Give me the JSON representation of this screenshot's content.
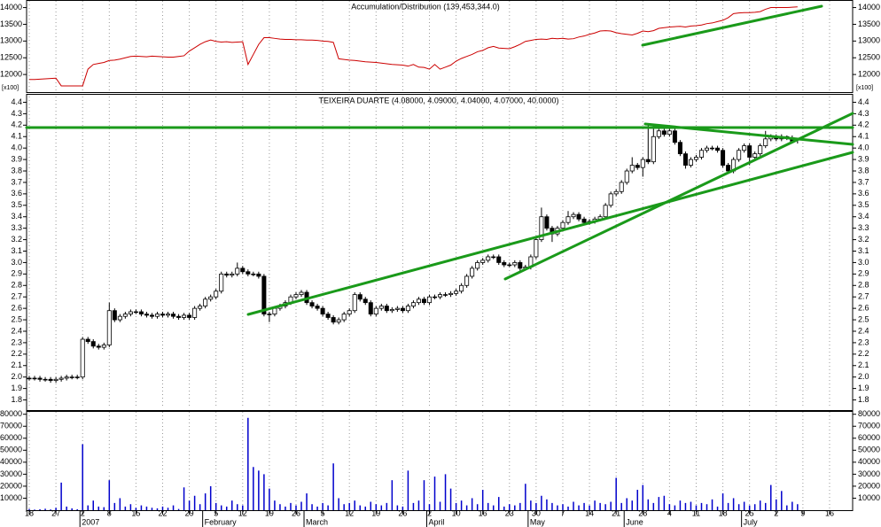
{
  "chart_data": [
    {
      "type": "line",
      "title": "Accumulation/Distribution (139,453,344.0)",
      "color": "#cc0000",
      "scale_note": "[x100]",
      "ylim": [
        11500,
        14200
      ],
      "yticks": [
        12000,
        12500,
        13000,
        13500,
        14000
      ],
      "values": [
        11850,
        11850,
        11860,
        11870,
        11880,
        11890,
        11660,
        11660,
        11660,
        11660,
        11660,
        12160,
        12300,
        12330,
        12360,
        12420,
        12430,
        12460,
        12500,
        12540,
        12550,
        12540,
        12530,
        12550,
        12540,
        12530,
        12520,
        12520,
        12540,
        12560,
        12700,
        12800,
        12900,
        12980,
        13030,
        12990,
        12970,
        12980,
        12960,
        12970,
        12980,
        12300,
        12600,
        12900,
        13100,
        13100,
        13080,
        13060,
        13050,
        13050,
        13040,
        13040,
        13030,
        13030,
        13020,
        13000,
        12990,
        12960,
        12470,
        12450,
        12430,
        12420,
        12400,
        12380,
        12370,
        12360,
        12340,
        12320,
        12300,
        12290,
        12280,
        12250,
        12300,
        12220,
        12210,
        12160,
        12300,
        12160,
        12220,
        12280,
        12400,
        12480,
        12540,
        12600,
        12680,
        12720,
        12800,
        12840,
        12790,
        12780,
        12770,
        12830,
        12900,
        12990,
        13020,
        13050,
        13060,
        13050,
        13080,
        13070,
        13080,
        13060,
        13070,
        13120,
        13150,
        13200,
        13240,
        13300,
        13310,
        13300,
        13250,
        13220,
        13200,
        13180,
        13230,
        13300,
        13280,
        13310,
        13380,
        13400,
        13420,
        13430,
        13440,
        13420,
        13450,
        13460,
        13480,
        13520,
        13540,
        13580,
        13620,
        13700,
        13820,
        13840,
        13850,
        13850,
        13860,
        13880,
        13950,
        14000,
        14000,
        14000,
        14000,
        14010,
        14020,
        null,
        null,
        null,
        null,
        null,
        null,
        null
      ]
    },
    {
      "type": "candlestick",
      "title": "TEIXEIRA DUARTE (4.08000, 4.09000, 4.04000, 4.07000, 40.0000)",
      "ylim": [
        1.75,
        4.45
      ],
      "yticks": [
        1.8,
        1.9,
        {
          "value": 2,
          "label": "2.0"
        },
        2.1,
        2.2,
        2.3,
        2.4,
        2.5,
        2.6,
        2.7,
        2.8,
        2.9,
        {
          "value": 3,
          "label": "3.0"
        },
        3.1,
        3.2,
        3.3,
        3.4,
        3.5,
        3.6,
        3.7,
        3.8,
        3.9,
        {
          "value": 4,
          "label": "4.0"
        },
        4.1,
        4.2,
        4.3,
        4.4
      ],
      "categories": [
        "18",
        null,
        null,
        null,
        null,
        "27",
        null,
        null,
        null,
        null,
        "2",
        null,
        null,
        null,
        null,
        "8",
        null,
        null,
        null,
        null,
        "15",
        null,
        null,
        null,
        null,
        "22",
        null,
        null,
        null,
        null,
        "29",
        null,
        null,
        null,
        null,
        "5",
        null,
        null,
        null,
        null,
        "12",
        null,
        null,
        null,
        null,
        "19",
        null,
        null,
        null,
        null,
        "26",
        null,
        null,
        null,
        null,
        "5",
        null,
        null,
        null,
        null,
        "12",
        null,
        null,
        null,
        null,
        "19",
        null,
        null,
        null,
        null,
        "26",
        null,
        null,
        null,
        null,
        "2",
        null,
        null,
        null,
        null,
        "10",
        null,
        null,
        null,
        null,
        "16",
        null,
        null,
        null,
        null,
        "23",
        null,
        null,
        null,
        null,
        "30",
        null,
        null,
        null,
        null,
        "7",
        null,
        null,
        null,
        null,
        "14",
        null,
        null,
        null,
        null,
        "21",
        null,
        null,
        null,
        null,
        "28",
        null,
        null,
        null,
        null,
        "4",
        null,
        null,
        null,
        null,
        "11",
        null,
        null,
        null,
        null,
        "18",
        null,
        null,
        null,
        null,
        "25",
        null,
        null,
        null,
        null,
        "2",
        null,
        null,
        null,
        null,
        "9",
        null,
        null,
        null,
        null,
        "16",
        null
      ],
      "months": [
        null,
        null,
        null,
        null,
        null,
        null,
        null,
        null,
        null,
        null,
        "2007",
        null,
        null,
        null,
        null,
        null,
        null,
        null,
        null,
        null,
        null,
        null,
        null,
        null,
        null,
        null,
        null,
        null,
        null,
        null,
        null,
        null,
        null,
        "February",
        null,
        null,
        null,
        null,
        null,
        null,
        null,
        null,
        null,
        null,
        null,
        null,
        null,
        null,
        null,
        null,
        null,
        null,
        "March",
        null,
        null,
        null,
        null,
        null,
        null,
        null,
        null,
        null,
        null,
        null,
        null,
        null,
        null,
        null,
        null,
        null,
        null,
        null,
        null,
        null,
        null,
        "April",
        null,
        null,
        null,
        null,
        null,
        null,
        null,
        null,
        null,
        null,
        null,
        null,
        null,
        null,
        null,
        null,
        null,
        null,
        "May",
        null,
        null,
        null,
        null,
        null,
        null,
        null,
        null,
        null,
        null,
        null,
        null,
        null,
        null,
        null,
        null,
        null,
        "June",
        null,
        null,
        null,
        null,
        null,
        null,
        null,
        null,
        null,
        null,
        null,
        null,
        null,
        null,
        null,
        null,
        null,
        null,
        null,
        null,
        null,
        "July",
        null,
        null,
        null,
        null,
        null,
        null,
        null,
        null,
        null,
        null,
        null,
        null
      ],
      "open": [
        1.99,
        1.99,
        1.99,
        1.98,
        1.98,
        1.97,
        1.98,
        1.99,
        2.0,
        2.0,
        2.0,
        2.33,
        2.31,
        2.27,
        2.26,
        2.28,
        2.58,
        2.5,
        2.53,
        2.55,
        2.57,
        2.57,
        2.55,
        2.54,
        2.53,
        2.55,
        2.54,
        2.55,
        2.53,
        2.52,
        2.54,
        2.52,
        2.6,
        2.62,
        2.68,
        2.7,
        2.75,
        2.9,
        2.89,
        2.9,
        2.95,
        2.92,
        2.9,
        2.9,
        2.88,
        2.55,
        2.55,
        2.6,
        2.62,
        2.65,
        2.7,
        2.72,
        2.74,
        2.65,
        2.62,
        2.6,
        2.55,
        2.52,
        2.48,
        2.5,
        2.55,
        2.58,
        2.72,
        2.68,
        2.65,
        2.55,
        2.6,
        2.62,
        2.58,
        2.59,
        2.6,
        2.58,
        2.62,
        2.65,
        2.68,
        2.65,
        2.7,
        2.7,
        2.72,
        2.72,
        2.73,
        2.75,
        2.8,
        2.88,
        2.95,
        3.0,
        3.02,
        3.05,
        3.05,
        3.0,
        2.98,
        2.98,
        3.0,
        2.95,
        2.96,
        3.05,
        3.2,
        3.4,
        3.3,
        3.25,
        3.3,
        3.35,
        3.4,
        3.42,
        3.38,
        3.35,
        3.36,
        3.38,
        3.4,
        3.5,
        3.6,
        3.62,
        3.7,
        3.8,
        3.85,
        3.83,
        3.9,
        3.88,
        4.1,
        4.15,
        4.12,
        4.15,
        4.05,
        3.95,
        3.85,
        3.9,
        3.92,
        3.98,
        4.0,
        4.0,
        3.98,
        3.85,
        3.8,
        3.9,
        3.98,
        4.02,
        3.92,
        3.95,
        4.02,
        4.08,
        4.1,
        4.08,
        4.1,
        4.09,
        4.08,
        null,
        null,
        null,
        null,
        null,
        null,
        null
      ],
      "high": [
        2.01,
        2.01,
        2.01,
        2.0,
        2.0,
        2.0,
        2.01,
        2.02,
        2.02,
        2.02,
        2.35,
        2.35,
        2.33,
        2.29,
        2.3,
        2.65,
        2.6,
        2.55,
        2.57,
        2.59,
        2.59,
        2.59,
        2.57,
        2.56,
        2.57,
        2.57,
        2.57,
        2.57,
        2.55,
        2.56,
        2.56,
        2.62,
        2.64,
        2.7,
        2.72,
        2.77,
        2.92,
        2.92,
        2.92,
        3.0,
        2.97,
        2.94,
        2.92,
        2.92,
        2.9,
        2.57,
        2.62,
        2.64,
        2.67,
        2.72,
        2.74,
        2.76,
        2.76,
        2.67,
        2.64,
        2.62,
        2.57,
        2.54,
        2.52,
        2.57,
        2.6,
        2.74,
        2.74,
        2.7,
        2.67,
        2.62,
        2.64,
        2.64,
        2.61,
        2.62,
        2.62,
        2.64,
        2.67,
        2.7,
        2.7,
        2.72,
        2.72,
        2.74,
        2.74,
        2.75,
        2.77,
        2.82,
        2.9,
        2.97,
        3.02,
        3.04,
        3.07,
        3.07,
        3.07,
        3.02,
        3.0,
        3.02,
        3.02,
        2.98,
        3.07,
        3.22,
        3.48,
        3.42,
        3.32,
        3.32,
        3.37,
        3.45,
        3.44,
        3.44,
        3.4,
        3.38,
        3.4,
        3.42,
        3.52,
        3.62,
        3.64,
        3.72,
        3.82,
        3.92,
        3.87,
        3.92,
        4.2,
        4.2,
        4.2,
        4.17,
        4.18,
        4.17,
        4.07,
        3.97,
        3.92,
        3.94,
        4.0,
        4.02,
        4.02,
        4.02,
        4.0,
        3.87,
        3.92,
        4.0,
        4.04,
        4.04,
        3.97,
        4.04,
        4.15,
        4.12,
        4.12,
        4.12,
        4.11,
        4.11,
        4.09,
        null,
        null,
        null,
        null,
        null,
        null,
        null
      ],
      "low": [
        1.97,
        1.97,
        1.96,
        1.96,
        1.95,
        1.95,
        1.96,
        1.97,
        1.98,
        1.98,
        1.98,
        2.29,
        2.25,
        2.24,
        2.24,
        2.26,
        2.48,
        2.48,
        2.51,
        2.53,
        2.55,
        2.53,
        2.52,
        2.51,
        2.51,
        2.52,
        2.52,
        2.51,
        2.5,
        2.5,
        2.5,
        2.5,
        2.58,
        2.6,
        2.66,
        2.68,
        2.73,
        2.87,
        2.87,
        2.88,
        2.9,
        2.88,
        2.88,
        2.86,
        2.53,
        2.48,
        2.53,
        2.58,
        2.6,
        2.63,
        2.68,
        2.7,
        2.63,
        2.6,
        2.58,
        2.53,
        2.5,
        2.46,
        2.46,
        2.48,
        2.53,
        2.56,
        2.66,
        2.63,
        2.53,
        2.53,
        2.58,
        2.56,
        2.56,
        2.57,
        2.56,
        2.56,
        2.6,
        2.63,
        2.63,
        2.63,
        2.68,
        2.68,
        2.7,
        2.7,
        2.71,
        2.73,
        2.78,
        2.86,
        2.93,
        2.98,
        3.0,
        3.03,
        2.98,
        2.96,
        2.96,
        2.96,
        2.93,
        2.93,
        2.94,
        3.03,
        3.18,
        3.28,
        3.18,
        3.23,
        3.28,
        3.33,
        3.38,
        3.36,
        3.33,
        3.33,
        3.34,
        3.36,
        3.38,
        3.48,
        3.58,
        3.6,
        3.68,
        3.78,
        3.81,
        3.75,
        3.86,
        3.86,
        4.08,
        4.1,
        4.1,
        4.03,
        3.93,
        3.82,
        3.83,
        3.88,
        3.9,
        3.96,
        3.98,
        3.96,
        3.83,
        3.78,
        3.78,
        3.88,
        3.96,
        3.85,
        3.9,
        3.93,
        4.0,
        4.06,
        4.06,
        4.06,
        4.07,
        4.04,
        4.04,
        null,
        null,
        null,
        null,
        null,
        null,
        null
      ],
      "close": [
        1.99,
        1.99,
        1.98,
        1.98,
        1.97,
        1.98,
        1.99,
        2.0,
        2.0,
        2.0,
        2.33,
        2.31,
        2.27,
        2.26,
        2.28,
        2.58,
        2.5,
        2.53,
        2.55,
        2.57,
        2.57,
        2.55,
        2.54,
        2.53,
        2.55,
        2.54,
        2.55,
        2.53,
        2.52,
        2.54,
        2.52,
        2.6,
        2.62,
        2.68,
        2.7,
        2.75,
        2.9,
        2.89,
        2.9,
        2.95,
        2.92,
        2.9,
        2.9,
        2.88,
        2.55,
        2.55,
        2.6,
        2.62,
        2.65,
        2.7,
        2.72,
        2.74,
        2.65,
        2.62,
        2.6,
        2.55,
        2.52,
        2.48,
        2.5,
        2.55,
        2.58,
        2.72,
        2.68,
        2.65,
        2.55,
        2.6,
        2.62,
        2.58,
        2.59,
        2.6,
        2.58,
        2.62,
        2.65,
        2.68,
        2.65,
        2.7,
        2.7,
        2.72,
        2.72,
        2.73,
        2.75,
        2.8,
        2.88,
        2.95,
        3.0,
        3.02,
        3.05,
        3.05,
        3.0,
        2.98,
        2.98,
        3.0,
        2.95,
        2.96,
        3.05,
        3.2,
        3.4,
        3.3,
        3.25,
        3.3,
        3.35,
        3.4,
        3.42,
        3.38,
        3.35,
        3.36,
        3.38,
        3.4,
        3.5,
        3.6,
        3.62,
        3.7,
        3.8,
        3.85,
        3.83,
        3.9,
        3.88,
        4.1,
        4.15,
        4.12,
        4.15,
        4.05,
        3.95,
        3.85,
        3.9,
        3.92,
        3.98,
        4.0,
        4.0,
        3.98,
        3.85,
        3.8,
        3.9,
        3.98,
        4.02,
        3.92,
        3.95,
        4.02,
        4.08,
        4.1,
        4.08,
        4.1,
        4.09,
        4.06,
        4.07,
        null,
        null,
        null,
        null,
        null,
        null,
        null
      ]
    },
    {
      "type": "bar",
      "color": "#0000cc",
      "ylim": [
        0,
        82000
      ],
      "yticks": [
        10000,
        20000,
        30000,
        40000,
        50000,
        60000,
        70000,
        80000
      ],
      "values": [
        1000,
        500,
        800,
        1200,
        600,
        2000,
        23000,
        3000,
        1500,
        800,
        55000,
        4000,
        8000,
        3000,
        2500,
        25000,
        6000,
        10000,
        3000,
        5000,
        2000,
        4000,
        3000,
        2000,
        1500,
        3000,
        2000,
        4000,
        1000,
        19000,
        8000,
        12000,
        5000,
        14000,
        20000,
        6000,
        4000,
        3000,
        8000,
        5000,
        4000,
        77000,
        36000,
        33000,
        30000,
        18000,
        8000,
        5000,
        3000,
        6000,
        4000,
        7000,
        14000,
        5000,
        3000,
        6000,
        4000,
        39000,
        10000,
        5000,
        6000,
        8000,
        4000,
        3000,
        7000,
        5000,
        4000,
        6000,
        25000,
        4000,
        3000,
        33000,
        6000,
        8000,
        25000,
        5000,
        28000,
        7000,
        30000,
        18000,
        6000,
        8000,
        4000,
        10000,
        5000,
        17000,
        6000,
        4000,
        11000,
        3000,
        5000,
        4000,
        6000,
        22000,
        8000,
        6000,
        12000,
        9000,
        6000,
        4000,
        5000,
        3000,
        7000,
        4000,
        6000,
        4000,
        8000,
        6000,
        5000,
        7000,
        27000,
        6000,
        10000,
        8000,
        17000,
        21000,
        9000,
        6000,
        11000,
        12000,
        5000,
        4000,
        8000,
        6000,
        7000,
        4000,
        6000,
        5000,
        9000,
        3000,
        14000,
        6000,
        10000,
        5000,
        7000,
        4000,
        5000,
        8000,
        6000,
        21000,
        9000,
        16000,
        4000,
        7000,
        5000,
        null,
        null,
        null,
        null,
        null,
        null,
        null
      ]
    }
  ]
}
